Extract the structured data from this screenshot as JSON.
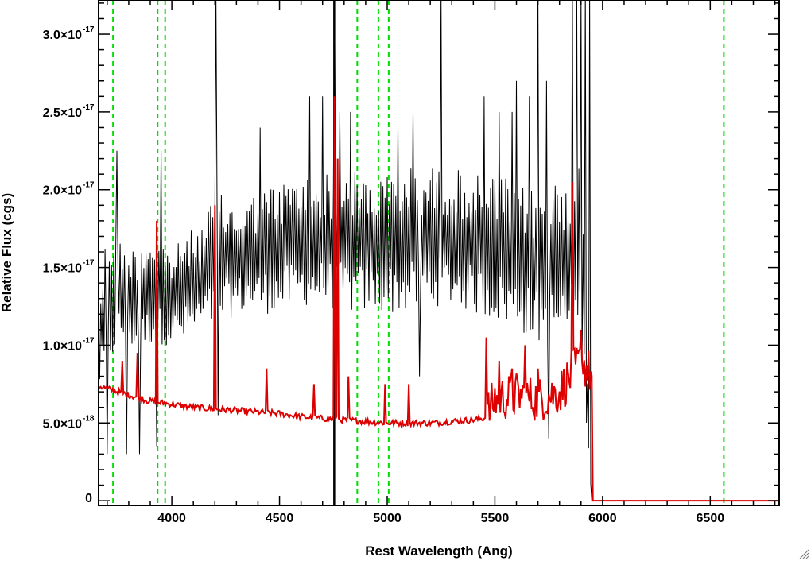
{
  "chart_data": {
    "type": "line",
    "title": "",
    "xlabel": "Rest Wavelength (Ang)",
    "ylabel": "Relative Flux (cgs)",
    "xlim": [
      3660,
      6820
    ],
    "ylim": [
      -3e-19,
      3.22e-17
    ],
    "x_ticks": [
      {
        "value": 4000,
        "label": "4000"
      },
      {
        "value": 4500,
        "label": "4500"
      },
      {
        "value": 5000,
        "label": "5000"
      },
      {
        "value": 5500,
        "label": "5500"
      },
      {
        "value": 6000,
        "label": "6000"
      },
      {
        "value": 6500,
        "label": "6500"
      }
    ],
    "y_ticks": [
      {
        "value": 0,
        "mantissa": "0",
        "exponent": ""
      },
      {
        "value": 5e-18,
        "mantissa": "5.0×10",
        "exponent": "-18"
      },
      {
        "value": 1e-17,
        "mantissa": "1.0×10",
        "exponent": "-17"
      },
      {
        "value": 1.5e-17,
        "mantissa": "1.5×10",
        "exponent": "-17"
      },
      {
        "value": 2e-17,
        "mantissa": "2.0×10",
        "exponent": "-17"
      },
      {
        "value": 2.5e-17,
        "mantissa": "2.5×10",
        "exponent": "-17"
      },
      {
        "value": 3e-17,
        "mantissa": "3.0×10",
        "exponent": "-17"
      }
    ],
    "grid": false,
    "legend": "none",
    "reference_lines": {
      "color": "#00dd00",
      "style": "dashed",
      "x": [
        3727,
        3934,
        3969,
        4861,
        4959,
        5007,
        6563
      ]
    },
    "marker_line": {
      "x": 4754,
      "color": "#000000"
    },
    "series": [
      {
        "color": "#000000",
        "description_role": "observed spectrum (noisy)",
        "x_step": 10,
        "range_end_flux_zero_after": 5950,
        "envelope": [
          [
            3660,
            7e-18,
            1.3e-17
          ],
          [
            3700,
            8e-18,
            1.8e-17
          ],
          [
            3750,
            1e-17,
            1.7e-17
          ],
          [
            3800,
            1e-17,
            1.6e-17
          ],
          [
            3850,
            9e-18,
            1.7e-17
          ],
          [
            3900,
            1e-17,
            1.75e-17
          ],
          [
            3950,
            1e-17,
            1.7e-17
          ],
          [
            4000,
            1e-17,
            1.6e-17
          ],
          [
            4050,
            1e-17,
            1.7e-17
          ],
          [
            4100,
            1.05e-17,
            1.75e-17
          ],
          [
            4150,
            1.1e-17,
            1.8e-17
          ],
          [
            4200,
            1.1e-17,
            2e-17
          ],
          [
            4300,
            1.2e-17,
            1.9e-17
          ],
          [
            4400,
            1.2e-17,
            2e-17
          ],
          [
            4500,
            1.2e-17,
            2.05e-17
          ],
          [
            4600,
            1.25e-17,
            2.1e-17
          ],
          [
            4700,
            1.25e-17,
            2.1e-17
          ],
          [
            4800,
            1.2e-17,
            2.15e-17
          ],
          [
            4900,
            1.2e-17,
            2.1e-17
          ],
          [
            5000,
            1.2e-17,
            2.1e-17
          ],
          [
            5100,
            1.2e-17,
            2.15e-17
          ],
          [
            5200,
            1.25e-17,
            2.15e-17
          ],
          [
            5300,
            1.25e-17,
            2.15e-17
          ],
          [
            5400,
            1.2e-17,
            2.1e-17
          ],
          [
            5500,
            1.15e-17,
            2.1e-17
          ],
          [
            5600,
            1.1e-17,
            2.05e-17
          ],
          [
            5700,
            1e-17,
            2e-17
          ],
          [
            5800,
            1e-17,
            2.1e-17
          ],
          [
            5900,
            1e-17,
            2.2e-17
          ],
          [
            5950,
            0,
            0
          ],
          [
            6820,
            0,
            0
          ]
        ],
        "spikes": [
          [
            3700,
            3e-18
          ],
          [
            3745,
            2.25e-17
          ],
          [
            3790,
            3e-18
          ],
          [
            3850,
            3e-18
          ],
          [
            3930,
            3.5e-18
          ],
          [
            3950,
            2.25e-17
          ],
          [
            4205,
            3.3e-17
          ],
          [
            4215,
            5.5e-18
          ],
          [
            4410,
            2.4e-17
          ],
          [
            4640,
            2.6e-17
          ],
          [
            4700,
            2.6e-17
          ],
          [
            4754,
            3.3e-17
          ],
          [
            4780,
            2.5e-17
          ],
          [
            4830,
            2.5e-17
          ],
          [
            5050,
            2.4e-17
          ],
          [
            5120,
            2.5e-17
          ],
          [
            5150,
            8e-18
          ],
          [
            5250,
            3.3e-17
          ],
          [
            5450,
            2.6e-17
          ],
          [
            5520,
            2.5e-17
          ],
          [
            5580,
            2.5e-17
          ],
          [
            5600,
            2.7e-17
          ],
          [
            5660,
            2.6e-17
          ],
          [
            5700,
            3.3e-17
          ],
          [
            5740,
            2.7e-17
          ],
          [
            5750,
            4e-18
          ],
          [
            5860,
            3.3e-17
          ],
          [
            5880,
            3.3e-17
          ],
          [
            5900,
            3.3e-17
          ],
          [
            5920,
            3.3e-17
          ],
          [
            5940,
            3.3e-17
          ]
        ]
      },
      {
        "color": "#dd0000",
        "description_role": "continuum / error spectrum",
        "points": [
          [
            3660,
            7.4e-18
          ],
          [
            3700,
            7.2e-18
          ],
          [
            3750,
            7e-18
          ],
          [
            3800,
            6.8e-18
          ],
          [
            3850,
            6.6e-18
          ],
          [
            3900,
            6.4e-18
          ],
          [
            3950,
            6.3e-18
          ],
          [
            4000,
            6.2e-18
          ],
          [
            4100,
            6e-18
          ],
          [
            4200,
            5.9e-18
          ],
          [
            4300,
            5.8e-18
          ],
          [
            4400,
            5.7e-18
          ],
          [
            4500,
            5.6e-18
          ],
          [
            4600,
            5.4e-18
          ],
          [
            4700,
            5.3e-18
          ],
          [
            4800,
            5.2e-18
          ],
          [
            4900,
            5.1e-18
          ],
          [
            5000,
            5e-18
          ],
          [
            5100,
            5e-18
          ],
          [
            5200,
            5e-18
          ],
          [
            5300,
            5.1e-18
          ],
          [
            5400,
            5.2e-18
          ],
          [
            5450,
            5.3e-18
          ],
          [
            5500,
            6.5e-18
          ],
          [
            5600,
            6.8e-18
          ],
          [
            5700,
            6.5e-18
          ],
          [
            5800,
            7e-18
          ],
          [
            5850,
            8e-18
          ],
          [
            5900,
            9e-18
          ],
          [
            5950,
            8e-18
          ],
          [
            5960,
            0
          ],
          [
            6820,
            0
          ]
        ],
        "spikes": [
          [
            3770,
            9e-18
          ],
          [
            3840,
            9.5e-18
          ],
          [
            3930,
            1.8e-17
          ],
          [
            4200,
            1.9e-17
          ],
          [
            4440,
            8.5e-18
          ],
          [
            4660,
            7.5e-18
          ],
          [
            4754,
            2.6e-17
          ],
          [
            4770,
            2.2e-17
          ],
          [
            4820,
            8e-18
          ],
          [
            4990,
            7.5e-18
          ],
          [
            5100,
            7.5e-18
          ],
          [
            5460,
            1.05e-17
          ],
          [
            5520,
            9e-18
          ],
          [
            5580,
            8.5e-18
          ],
          [
            5640,
            1e-17
          ],
          [
            5700,
            8.5e-18
          ],
          [
            5860,
            2.05e-17
          ],
          [
            5900,
            1.1e-17
          ]
        ]
      }
    ]
  },
  "ui": {
    "resize_grip_icon": "resize-grip-icon"
  }
}
